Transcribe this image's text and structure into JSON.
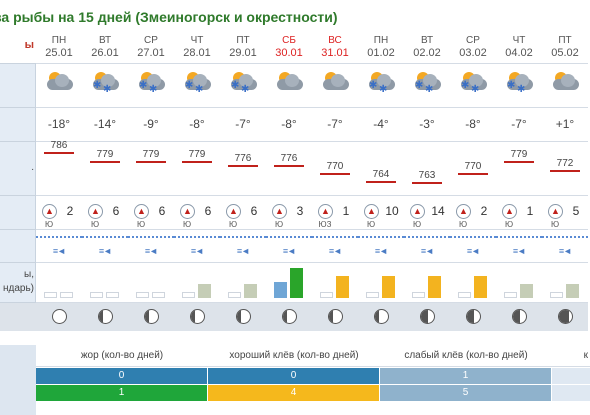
{
  "title": "ва рыбы на 15 дней (Змеиногорск и окрестности)",
  "left_labels": {
    "top_marker": "ы",
    "pressure_fragment": ".",
    "bite_fragment_1": "ы,",
    "bite_fragment_2": "ндарь)"
  },
  "days": [
    {
      "dow": "ПН",
      "date": "25.01",
      "weekend": false,
      "weather": "cloudy",
      "temp": "-18°",
      "pressure": "786",
      "wind_dir": "Ю",
      "wind_speed": "2",
      "bars": [
        "empty",
        "empty"
      ],
      "moon": "full"
    },
    {
      "dow": "ВТ",
      "date": "26.01",
      "weekend": false,
      "weather": "snow",
      "temp": "-14°",
      "pressure": "779",
      "wind_dir": "Ю",
      "wind_speed": "6",
      "bars": [
        "empty",
        "empty"
      ],
      "moon": "waning-gibbous"
    },
    {
      "dow": "СР",
      "date": "27.01",
      "weekend": false,
      "weather": "snow-light",
      "temp": "-9°",
      "pressure": "779",
      "wind_dir": "Ю",
      "wind_speed": "6",
      "bars": [
        "empty",
        "empty"
      ],
      "moon": "waning-gibbous"
    },
    {
      "dow": "ЧТ",
      "date": "28.01",
      "weekend": false,
      "weather": "snow",
      "temp": "-8°",
      "pressure": "779",
      "wind_dir": "Ю",
      "wind_speed": "6",
      "bars": [
        "empty",
        "gray"
      ],
      "moon": "waning-gibbous"
    },
    {
      "dow": "ПТ",
      "date": "29.01",
      "weekend": false,
      "weather": "snow",
      "temp": "-7°",
      "pressure": "776",
      "wind_dir": "Ю",
      "wind_speed": "6",
      "bars": [
        "empty",
        "gray"
      ],
      "moon": "waning-gibbous"
    },
    {
      "dow": "СБ",
      "date": "30.01",
      "weekend": true,
      "weather": "cloudy",
      "temp": "-8°",
      "pressure": "776",
      "wind_dir": "Ю",
      "wind_speed": "3",
      "bars": [
        "blue",
        "green"
      ],
      "moon": "waning-gibbous"
    },
    {
      "dow": "ВС",
      "date": "31.01",
      "weekend": true,
      "weather": "cloudy",
      "temp": "-7°",
      "pressure": "770",
      "wind_dir": "ЮЗ",
      "wind_speed": "1",
      "bars": [
        "empty",
        "yellow"
      ],
      "moon": "waning-gibbous"
    },
    {
      "dow": "ПН",
      "date": "01.02",
      "weekend": false,
      "weather": "snow",
      "temp": "-4°",
      "pressure": "764",
      "wind_dir": "Ю",
      "wind_speed": "10",
      "bars": [
        "empty",
        "yellow"
      ],
      "moon": "waning-gibbous"
    },
    {
      "dow": "ВТ",
      "date": "02.02",
      "weekend": false,
      "weather": "snow",
      "temp": "-3°",
      "pressure": "763",
      "wind_dir": "Ю",
      "wind_speed": "14",
      "bars": [
        "empty",
        "yellow"
      ],
      "moon": "third-quarter"
    },
    {
      "dow": "СР",
      "date": "03.02",
      "weekend": false,
      "weather": "snow",
      "temp": "-8°",
      "pressure": "770",
      "wind_dir": "Ю",
      "wind_speed": "2",
      "bars": [
        "empty",
        "yellow"
      ],
      "moon": "third-quarter"
    },
    {
      "dow": "ЧТ",
      "date": "04.02",
      "weekend": false,
      "weather": "snow",
      "temp": "-7°",
      "pressure": "779",
      "wind_dir": "Ю",
      "wind_speed": "1",
      "bars": [
        "empty",
        "gray"
      ],
      "moon": "third-quarter"
    },
    {
      "dow": "ПТ",
      "date": "05.02",
      "weekend": false,
      "weather": "cloudy",
      "temp": "+1°",
      "pressure": "772",
      "wind_dir": "Ю",
      "wind_speed": "5",
      "bars": [
        "empty",
        "gray"
      ],
      "moon": "waning-crescent"
    }
  ],
  "legend": {
    "headers": [
      "жор (кол-во дней)",
      "хороший клёв (кол-во дней)",
      "слабый клёв (кол-во дней)",
      "к"
    ],
    "row1": [
      "0",
      "0",
      "1",
      ""
    ],
    "row2": [
      "1",
      "4",
      "5",
      ""
    ]
  },
  "colors": {
    "title": "#2f7a2b",
    "weekend": "#dd2222",
    "pressure_line": "#c0211b",
    "bar_blue": "#6fa6d6",
    "bar_green": "#2aa52a",
    "bar_yellow": "#f3b31f",
    "bar_gray": "#c5cdb6",
    "legend_row1": [
      "#2f7fb0",
      "#2f7fb0",
      "#8fb2cc",
      "#dfe8f2"
    ],
    "legend_row2": [
      "#1fa63a",
      "#f5b81c",
      "#8fb2cc",
      "#dfe8f2"
    ]
  }
}
